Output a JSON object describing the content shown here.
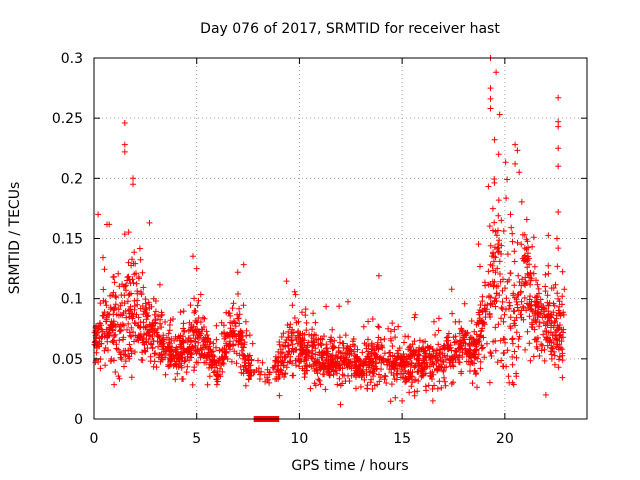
{
  "chart_data": {
    "type": "scatter",
    "title": "Day 076 of 2017, SRMTID for receiver hast",
    "xlabel": "GPS time / hours",
    "ylabel": "SRMTID / TECUs",
    "xlim": [
      0,
      24
    ],
    "ylim": [
      0,
      0.3
    ],
    "x_ticks": [
      "0",
      "5",
      "10",
      "15",
      "20"
    ],
    "y_ticks": [
      "0",
      "0.05",
      "0.1",
      "0.15",
      "0.2",
      "0.25",
      "0.3"
    ],
    "grid": true,
    "marker": "+",
    "color": "#ff0000",
    "series": [
      {
        "name": "SRMTID",
        "profile": {
          "x": [
            0,
            0.5,
            1.0,
            1.5,
            2.0,
            2.5,
            3.0,
            3.5,
            4.0,
            4.5,
            5.0,
            5.5,
            6.0,
            6.5,
            7.0,
            7.5,
            8.0,
            8.5,
            9.0,
            9.5,
            10.0,
            11.0,
            12.0,
            13.0,
            14.0,
            15.0,
            16.0,
            17.0,
            18.0,
            18.5,
            19.0,
            19.5,
            20.0,
            20.5,
            21.0,
            21.5,
            22.0,
            22.5,
            22.9
          ],
          "median": [
            0.06,
            0.075,
            0.075,
            0.085,
            0.09,
            0.075,
            0.07,
            0.055,
            0.055,
            0.055,
            0.07,
            0.055,
            0.04,
            0.065,
            0.07,
            0.045,
            0.04,
            0.035,
            0.045,
            0.06,
            0.06,
            0.05,
            0.045,
            0.045,
            0.05,
            0.045,
            0.045,
            0.05,
            0.06,
            0.055,
            0.08,
            0.11,
            0.1,
            0.09,
            0.11,
            0.09,
            0.08,
            0.07,
            0.08
          ],
          "spread": [
            0.02,
            0.025,
            0.03,
            0.04,
            0.05,
            0.025,
            0.025,
            0.018,
            0.015,
            0.02,
            0.025,
            0.018,
            0.012,
            0.02,
            0.025,
            0.015,
            0.01,
            0.008,
            0.015,
            0.02,
            0.02,
            0.018,
            0.015,
            0.018,
            0.018,
            0.018,
            0.018,
            0.018,
            0.018,
            0.018,
            0.035,
            0.06,
            0.06,
            0.05,
            0.045,
            0.03,
            0.03,
            0.03,
            0.04
          ]
        },
        "peaks": [
          {
            "x": 0.2,
            "y": 0.17
          },
          {
            "x": 1.5,
            "y": 0.246
          },
          {
            "x": 1.5,
            "y": 0.228
          },
          {
            "x": 1.5,
            "y": 0.222
          },
          {
            "x": 1.9,
            "y": 0.2
          },
          {
            "x": 1.9,
            "y": 0.195
          },
          {
            "x": 2.7,
            "y": 0.163
          },
          {
            "x": 5.0,
            "y": 0.125
          },
          {
            "x": 7.0,
            "y": 0.122
          },
          {
            "x": 19.3,
            "y": 0.3
          },
          {
            "x": 19.3,
            "y": 0.275
          },
          {
            "x": 19.3,
            "y": 0.266
          },
          {
            "x": 19.3,
            "y": 0.258
          },
          {
            "x": 19.5,
            "y": 0.232
          },
          {
            "x": 19.7,
            "y": 0.22
          },
          {
            "x": 20.5,
            "y": 0.228
          },
          {
            "x": 20.5,
            "y": 0.212
          },
          {
            "x": 20.7,
            "y": 0.205
          },
          {
            "x": 22.6,
            "y": 0.267
          },
          {
            "x": 22.6,
            "y": 0.247
          },
          {
            "x": 22.6,
            "y": 0.243
          },
          {
            "x": 22.6,
            "y": 0.225
          },
          {
            "x": 22.6,
            "y": 0.21
          },
          {
            "x": 22.6,
            "y": 0.172
          },
          {
            "x": 22.6,
            "y": 0.142
          }
        ],
        "lows": [
          {
            "x": 12.0,
            "y": 0.012
          },
          {
            "x": 15.0,
            "y": 0.015
          },
          {
            "x": 16.5,
            "y": 0.015
          },
          {
            "x": 22.0,
            "y": 0.02
          }
        ]
      },
      {
        "name": "baseline",
        "x_range": [
          7.8,
          9.0
        ],
        "y": 0
      }
    ]
  }
}
